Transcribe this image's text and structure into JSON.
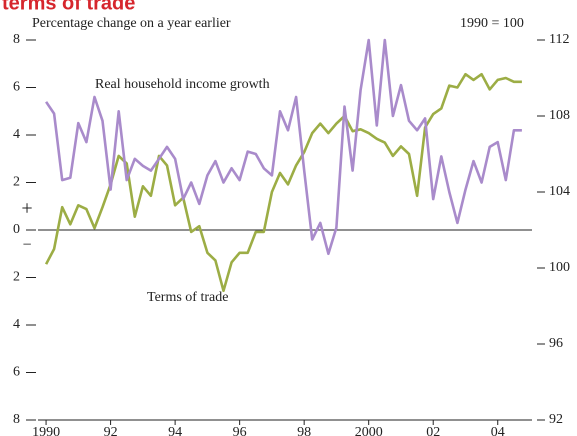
{
  "chart_data": {
    "type": "line",
    "title": "terms of trade",
    "subtitle": "Percentage change on a year earlier",
    "y2_label": "1990 = 100",
    "annotations": [
      "+",
      "−"
    ],
    "x": [
      1990,
      1990.25,
      1990.5,
      1990.75,
      1991,
      1991.25,
      1991.5,
      1991.75,
      1992,
      1992.25,
      1992.5,
      1992.75,
      1993,
      1993.25,
      1993.5,
      1993.75,
      1994,
      1994.25,
      1994.5,
      1994.75,
      1995,
      1995.25,
      1995.5,
      1995.75,
      1996,
      1996.25,
      1996.5,
      1996.75,
      1997,
      1997.25,
      1997.5,
      1997.75,
      1998,
      1998.25,
      1998.5,
      1998.75,
      1999,
      1999.25,
      1999.5,
      1999.75,
      2000,
      2000.25,
      2000.5,
      2000.75,
      2001,
      2001.25,
      2001.5,
      2001.75,
      2002,
      2002.25,
      2002.5,
      2002.75,
      2003,
      2003.25,
      2003.5,
      2003.75,
      2004,
      2004.25,
      2004.5,
      2004.75
    ],
    "series": [
      {
        "name": "Real household income growth",
        "color": "#a98bcb",
        "axis": "y",
        "values": [
          5.4,
          4.9,
          2.1,
          2.2,
          4.5,
          3.7,
          5.6,
          4.6,
          1.7,
          5.0,
          2.1,
          3.0,
          2.7,
          2.5,
          3.0,
          3.5,
          3.0,
          1.3,
          2.0,
          1.1,
          2.3,
          2.9,
          2.0,
          2.6,
          2.1,
          3.3,
          3.2,
          2.6,
          2.3,
          5.0,
          4.2,
          5.6,
          2.5,
          -0.4,
          0.3,
          -1.0,
          0.1,
          5.2,
          2.5,
          5.9,
          8.0,
          4.4,
          8.0,
          4.8,
          6.1,
          4.6,
          4.2,
          4.7,
          1.3,
          3.1,
          1.6,
          0.3,
          1.7,
          2.9,
          2.0,
          3.5,
          3.7,
          2.1,
          4.2,
          4.2
        ]
      },
      {
        "name": "Terms of trade",
        "color": "#9cad45",
        "axis": "y2",
        "values": [
          100.2,
          101.0,
          103.2,
          102.3,
          103.3,
          103.1,
          102.1,
          103.2,
          104.4,
          105.9,
          105.5,
          102.7,
          104.3,
          103.8,
          105.9,
          105.4,
          103.3,
          103.7,
          101.9,
          102.2,
          100.8,
          100.4,
          98.8,
          100.3,
          100.8,
          100.8,
          101.9,
          101.9,
          104.0,
          105.0,
          104.4,
          105.4,
          106.1,
          107.1,
          107.6,
          107.1,
          107.6,
          108.0,
          107.2,
          107.3,
          107.1,
          106.8,
          106.6,
          105.9,
          106.4,
          106.0,
          103.8,
          107.4,
          108.1,
          108.4,
          109.6,
          109.5,
          110.2,
          109.9,
          110.2,
          109.4,
          109.9,
          110.0,
          109.8,
          109.8
        ]
      }
    ],
    "xlim": [
      1989.75,
      2005
    ],
    "xticks": [
      {
        "value": 1990,
        "label": "1990"
      },
      {
        "value": 1992,
        "label": "92"
      },
      {
        "value": 1994,
        "label": "94"
      },
      {
        "value": 1996,
        "label": "96"
      },
      {
        "value": 1998,
        "label": "98"
      },
      {
        "value": 2000,
        "label": "2000"
      },
      {
        "value": 2002,
        "label": "02"
      },
      {
        "value": 2004,
        "label": "04"
      }
    ],
    "ylim": [
      -8,
      8
    ],
    "yticks": [
      8,
      6,
      4,
      2,
      0,
      {
        "value": -2,
        "label": "2"
      },
      {
        "value": -4,
        "label": "4"
      },
      {
        "value": -6,
        "label": "6"
      },
      {
        "value": -8,
        "label": "8"
      }
    ],
    "y2lim": [
      92,
      112
    ],
    "y2ticks": [
      112,
      108,
      104,
      100,
      96,
      92
    ]
  }
}
